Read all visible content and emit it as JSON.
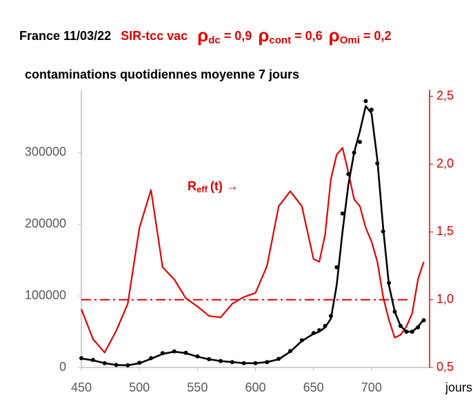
{
  "chart_data": {
    "type": "line",
    "title_parts": [
      {
        "text": "France 11/03/22",
        "color": "#000000"
      },
      {
        "text": "SIR-tcc vac",
        "color": "#e00000"
      },
      {
        "symbol": "ρ",
        "subscript": "dc",
        "text": "= 0,9",
        "color": "#e00000"
      },
      {
        "symbol": "ρ",
        "subscript": "cont",
        "text": "= 0,6",
        "color": "#e00000"
      },
      {
        "symbol": "ρ",
        "subscript": "Omi",
        "text": "= 0,2",
        "color": "#e00000"
      }
    ],
    "subtitle": "contaminations quotidiennes  moyenne 7 jours",
    "xlabel": "jours",
    "annotation": {
      "text": "R",
      "subscript": "eff",
      "suffix": "(t) →",
      "color": "#e00000"
    },
    "xlim": [
      450,
      750
    ],
    "xticks": [
      450,
      500,
      550,
      600,
      650,
      700
    ],
    "ylim": [
      0,
      388000
    ],
    "yticks": [
      0,
      100000,
      200000,
      300000
    ],
    "y2lim": [
      0.5,
      2.55
    ],
    "y2ticks": [
      {
        "value": 0.5,
        "label": "0,5"
      },
      {
        "value": 1.0,
        "label": "1,0"
      },
      {
        "value": 1.5,
        "label": "1,5"
      },
      {
        "value": 2.0,
        "label": "2,0"
      },
      {
        "value": 2.5,
        "label": "2,5"
      }
    ],
    "y2_reference": 1.0,
    "reference_color": "#e00000",
    "grid": false,
    "x": [
      450,
      460,
      470,
      480,
      490,
      500,
      510,
      520,
      530,
      540,
      550,
      560,
      570,
      580,
      590,
      600,
      610,
      620,
      630,
      640,
      650,
      655,
      660,
      665,
      670,
      675,
      680,
      685,
      690,
      695,
      700,
      705,
      710,
      715,
      720,
      725,
      730,
      735,
      740,
      745
    ],
    "series": [
      {
        "color": "#e00000",
        "axis": "y2",
        "marker": "none",
        "values": [
          0.93,
          0.71,
          0.61,
          0.77,
          0.97,
          1.53,
          1.81,
          1.24,
          1.15,
          1.01,
          0.95,
          0.88,
          0.87,
          0.97,
          1.02,
          1.05,
          1.25,
          1.69,
          1.8,
          1.69,
          1.3,
          1.28,
          1.48,
          1.89,
          2.07,
          2.12,
          1.94,
          1.74,
          1.69,
          1.53,
          1.43,
          1.28,
          1.02,
          0.85,
          0.72,
          0.74,
          0.8,
          0.9,
          1.15,
          1.28
        ]
      },
      {
        "color": "#000000",
        "axis": "y",
        "marker": "dots",
        "values": [
          13000,
          10500,
          6000,
          3500,
          3000,
          6500,
          13000,
          20000,
          22500,
          20500,
          15500,
          11500,
          9000,
          7500,
          6000,
          6000,
          7500,
          12000,
          23000,
          38000,
          48000,
          52000,
          58000,
          72000,
          140000,
          215000,
          270000,
          300000,
          315000,
          372000,
          360000,
          285000,
          190000,
          118000,
          78000,
          58000,
          50000,
          50000,
          56000,
          66000
        ]
      },
      {
        "color": "#000000",
        "axis": "y",
        "marker": "none",
        "values": [
          12500,
          10000,
          6000,
          3500,
          3000,
          6000,
          12000,
          19000,
          22000,
          20000,
          15000,
          11500,
          9000,
          7500,
          6000,
          6000,
          7500,
          11500,
          22000,
          37000,
          47000,
          50000,
          56000,
          68000,
          115000,
          190000,
          255000,
          300000,
          330000,
          365000,
          355000,
          290000,
          195000,
          115000,
          78000,
          58000,
          50000,
          50000,
          57000,
          67000
        ]
      }
    ]
  }
}
